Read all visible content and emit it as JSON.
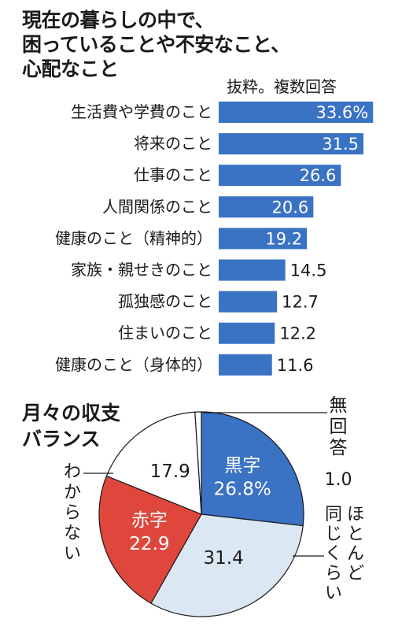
{
  "title": {
    "line1": "現在の暮らしの中で、",
    "line2": "困っていることや不安なこと、",
    "line3": "心配なこと"
  },
  "note": "抜粋。複数回答",
  "pie_title": {
    "line1": "月々の収支",
    "line2": "バランス"
  },
  "colors": {
    "bar": "#3a72c4",
    "black": "#3a72c4",
    "red": "#e0473c",
    "same": "#dbe8f4",
    "unknown": "#ffffff",
    "none": "#ffffff"
  },
  "chart_data": [
    {
      "type": "bar",
      "orientation": "horizontal",
      "categories": [
        "生活費や学費のこと",
        "将来のこと",
        "仕事のこと",
        "人間関係のこと",
        "健康のこと（精神的）",
        "家族・親せきのこと",
        "孤独感のこと",
        "住まいのこと",
        "健康のこと（身体的）"
      ],
      "values": [
        33.6,
        31.5,
        26.6,
        20.6,
        19.2,
        14.5,
        12.7,
        12.2,
        11.6
      ],
      "value_labels": [
        "33.6%",
        "31.5",
        "26.6",
        "20.6",
        "19.2",
        "14.5",
        "12.7",
        "12.2",
        "11.6"
      ]
    },
    {
      "type": "pie",
      "slices": [
        {
          "label": "黒字",
          "value": 26.8,
          "value_label": "26.8%"
        },
        {
          "label": "ほとんど同じくらい",
          "value": 31.4,
          "value_label": "31.4"
        },
        {
          "label": "赤字",
          "value": 22.9,
          "value_label": "22.9"
        },
        {
          "label": "わからない",
          "value": 17.9,
          "value_label": "17.9"
        },
        {
          "label": "無回答",
          "value": 1.0,
          "value_label": "1.0"
        }
      ]
    }
  ]
}
